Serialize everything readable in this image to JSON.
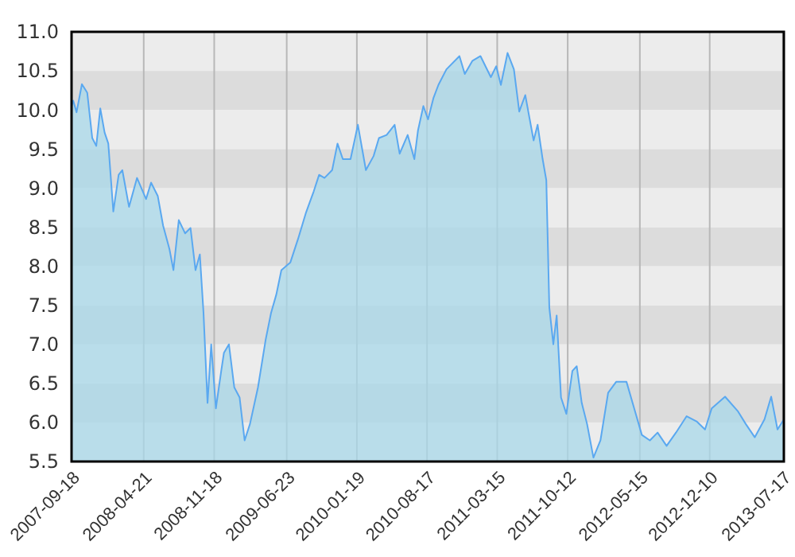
{
  "chart_data": {
    "type": "area",
    "grid": true,
    "xlim": [
      "2007-09-18",
      "2013-07-20"
    ],
    "xticks": [
      {
        "value": "2007-09-18",
        "label": "2007-09-18"
      },
      {
        "value": "2008-04-21",
        "label": "2008-04-21"
      },
      {
        "value": "2008-11-18",
        "label": "2008-11-18"
      },
      {
        "value": "2009-06-23",
        "label": "2009-06-23"
      },
      {
        "value": "2010-01-19",
        "label": "2010-01-19"
      },
      {
        "value": "2010-08-17",
        "label": "2010-08-17"
      },
      {
        "value": "2011-03-15",
        "label": "2011-03-15"
      },
      {
        "value": "2011-10-12",
        "label": "2011-10-12"
      },
      {
        "value": "2012-05-15",
        "label": "2012-05-15"
      },
      {
        "value": "2012-12-10",
        "label": "2012-12-10"
      },
      {
        "value": "2013-07-17",
        "label": "2013-07-17"
      }
    ],
    "ylim": [
      5.5,
      11.0
    ],
    "yticks": [
      5.5,
      {
        "value": 6,
        "label": "6.0"
      },
      6.5,
      {
        "value": 7,
        "label": "7.0"
      },
      7.5,
      {
        "value": 8,
        "label": "8.0"
      },
      8.5,
      {
        "value": 9,
        "label": "9.0"
      },
      9.5,
      {
        "value": 10,
        "label": "10.0"
      },
      10.5,
      {
        "value": 11,
        "label": "11.0"
      }
    ],
    "x": [
      "2007-09-18",
      "2007-09-23",
      "2007-10-03",
      "2007-10-19",
      "2007-11-04",
      "2007-11-19",
      "2007-12-01",
      "2007-12-13",
      "2007-12-26",
      "2008-01-06",
      "2008-01-21",
      "2008-02-06",
      "2008-02-17",
      "2008-03-08",
      "2008-04-01",
      "2008-04-28",
      "2008-05-13",
      "2008-06-02",
      "2008-06-18",
      "2008-07-07",
      "2008-07-19",
      "2008-08-04",
      "2008-08-23",
      "2008-09-08",
      "2008-09-23",
      "2008-10-06",
      "2008-10-17",
      "2008-10-29",
      "2008-11-09",
      "2008-11-23",
      "2008-12-09",
      "2008-12-17",
      "2009-01-01",
      "2009-01-17",
      "2009-02-02",
      "2009-02-17",
      "2009-03-05",
      "2009-03-29",
      "2009-04-21",
      "2009-05-07",
      "2009-05-23",
      "2009-06-07",
      "2009-07-04",
      "2009-07-27",
      "2009-08-20",
      "2009-09-12",
      "2009-09-28",
      "2009-10-14",
      "2009-11-06",
      "2009-11-22",
      "2009-12-08",
      "2009-12-31",
      "2010-01-22",
      "2010-02-15",
      "2010-03-10",
      "2010-03-26",
      "2010-04-18",
      "2010-05-12",
      "2010-05-27",
      "2010-06-20",
      "2010-07-10",
      "2010-07-21",
      "2010-08-06",
      "2010-08-20",
      "2010-09-05",
      "2010-09-20",
      "2010-10-14",
      "2010-11-22",
      "2010-12-08",
      "2010-12-31",
      "2011-01-24",
      "2011-02-24",
      "2011-03-12",
      "2011-03-26",
      "2011-04-15",
      "2011-05-04",
      "2011-05-20",
      "2011-06-07",
      "2011-07-02",
      "2011-07-14",
      "2011-07-29",
      "2011-08-09",
      "2011-08-18",
      "2011-08-30",
      "2011-09-09",
      "2011-09-22",
      "2011-10-08",
      "2011-10-26",
      "2011-11-08",
      "2011-11-23",
      "2011-12-09",
      "2011-12-28",
      "2012-01-18",
      "2012-02-10",
      "2012-03-05",
      "2012-04-05",
      "2012-04-28",
      "2012-05-21",
      "2012-06-14",
      "2012-07-07",
      "2012-08-03",
      "2012-08-31",
      "2012-10-02",
      "2012-11-02",
      "2012-11-26",
      "2012-12-16",
      "2013-01-25",
      "2013-03-05",
      "2013-03-28",
      "2013-04-24",
      "2013-05-23",
      "2013-06-12",
      "2013-07-01",
      "2013-07-20"
    ],
    "series": [
      {
        "color": "#5aa8f0",
        "values": [
          10.05,
          10.12,
          9.97,
          10.33,
          10.22,
          9.64,
          9.54,
          10.02,
          9.71,
          9.57,
          8.7,
          9.17,
          9.23,
          8.76,
          9.13,
          8.86,
          9.07,
          8.9,
          8.52,
          8.22,
          7.95,
          8.59,
          8.42,
          8.49,
          7.95,
          8.15,
          7.4,
          6.25,
          7.0,
          6.18,
          6.66,
          6.89,
          7.0,
          6.45,
          6.32,
          5.77,
          5.98,
          6.45,
          7.06,
          7.4,
          7.64,
          7.95,
          8.05,
          8.35,
          8.69,
          8.96,
          9.17,
          9.13,
          9.23,
          9.57,
          9.37,
          9.37,
          9.81,
          9.23,
          9.41,
          9.64,
          9.68,
          9.81,
          9.44,
          9.68,
          9.37,
          9.74,
          10.05,
          9.88,
          10.15,
          10.32,
          10.52,
          10.69,
          10.46,
          10.63,
          10.69,
          10.42,
          10.56,
          10.32,
          10.73,
          10.52,
          9.98,
          10.19,
          9.61,
          9.81,
          9.37,
          9.1,
          7.47,
          7.0,
          7.37,
          6.32,
          6.11,
          6.66,
          6.72,
          6.25,
          5.98,
          5.55,
          5.77,
          6.38,
          6.52,
          6.52,
          6.18,
          5.84,
          5.77,
          5.87,
          5.7,
          5.87,
          6.08,
          6.01,
          5.91,
          6.18,
          6.33,
          6.14,
          5.98,
          5.81,
          6.04,
          6.33,
          5.91,
          6.04
        ]
      }
    ]
  }
}
